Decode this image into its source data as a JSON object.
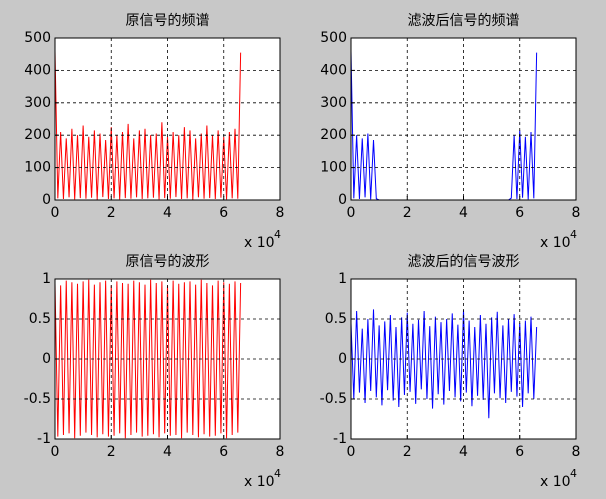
{
  "chart_data": [
    {
      "type": "line",
      "title": "原信号的频谱",
      "x_multiplier": "x 10",
      "x_exponent": "4",
      "x": [
        0,
        1000,
        2000,
        3000,
        4000,
        5000,
        6000,
        7000,
        8000,
        9000,
        10000,
        11000,
        12000,
        13000,
        14000,
        15000,
        16000,
        17000,
        18000,
        19000,
        20000,
        21000,
        22000,
        23000,
        24000,
        25000,
        26000,
        27000,
        28000,
        29000,
        30000,
        31000,
        32000,
        33000,
        34000,
        35000,
        36000,
        37000,
        38000,
        39000,
        40000,
        41000,
        42000,
        43000,
        44000,
        45000,
        46000,
        47000,
        48000,
        49000,
        50000,
        51000,
        52000,
        53000,
        54000,
        55000,
        56000,
        57000,
        58000,
        59000,
        60000,
        61000,
        62000,
        63000,
        64000,
        65000,
        66000
      ],
      "series": [
        {
          "color": "#ff0000",
          "values": [
            460,
            5,
            210,
            3,
            190,
            8,
            220,
            2,
            200,
            6,
            230,
            4,
            195,
            7,
            215,
            1,
            205,
            9,
            185,
            3,
            225,
            5,
            200,
            2,
            210,
            6,
            235,
            4,
            190,
            8,
            215,
            3,
            220,
            5,
            200,
            7,
            205,
            2,
            240,
            6,
            195,
            4,
            210,
            9,
            200,
            3,
            225,
            5,
            215,
            1,
            190,
            8,
            205,
            4,
            230,
            6,
            200,
            3,
            215,
            7,
            195,
            2,
            210,
            5,
            220,
            4,
            455
          ]
        }
      ],
      "xlim": [
        0,
        80000
      ],
      "xticks": [
        0,
        {
          "value": 20000,
          "label": "2"
        },
        {
          "value": 40000,
          "label": "4"
        },
        {
          "value": 60000,
          "label": "6"
        },
        {
          "value": 80000,
          "label": "8"
        }
      ],
      "ylim": [
        0,
        500
      ],
      "yticks": [
        0,
        100,
        200,
        300,
        400,
        500
      ],
      "grid": true
    },
    {
      "type": "line",
      "title": "滤波后信号的频谱",
      "x_multiplier": "x 10",
      "x_exponent": "4",
      "x": [
        0,
        1000,
        2000,
        3000,
        4000,
        5000,
        6000,
        7000,
        8000,
        9000,
        10000,
        11000,
        12000,
        13000,
        14000,
        15000,
        16000,
        17000,
        18000,
        19000,
        20000,
        21000,
        22000,
        23000,
        24000,
        25000,
        26000,
        27000,
        28000,
        29000,
        30000,
        31000,
        32000,
        33000,
        34000,
        35000,
        36000,
        37000,
        38000,
        39000,
        40000,
        41000,
        42000,
        43000,
        44000,
        45000,
        46000,
        47000,
        48000,
        49000,
        50000,
        51000,
        52000,
        53000,
        54000,
        55000,
        56000,
        57000,
        58000,
        59000,
        60000,
        61000,
        62000,
        63000,
        64000,
        65000,
        66000
      ],
      "series": [
        {
          "color": "#0000ff",
          "values": [
            460,
            5,
            200,
            3,
            190,
            8,
            205,
            2,
            185,
            4,
            0,
            0,
            0,
            0,
            0,
            0,
            0,
            0,
            0,
            0,
            0,
            0,
            0,
            0,
            0,
            0,
            0,
            0,
            0,
            0,
            0,
            0,
            0,
            0,
            0,
            0,
            0,
            0,
            0,
            0,
            0,
            0,
            0,
            0,
            0,
            0,
            0,
            0,
            0,
            0,
            0,
            0,
            0,
            0,
            0,
            0,
            0,
            6,
            200,
            3,
            215,
            7,
            195,
            2,
            210,
            5,
            455
          ]
        }
      ],
      "xlim": [
        0,
        80000
      ],
      "xticks": [
        0,
        {
          "value": 20000,
          "label": "2"
        },
        {
          "value": 40000,
          "label": "4"
        },
        {
          "value": 60000,
          "label": "6"
        },
        {
          "value": 80000,
          "label": "8"
        }
      ],
      "ylim": [
        0,
        500
      ],
      "yticks": [
        0,
        100,
        200,
        300,
        400,
        500
      ],
      "grid": true
    },
    {
      "type": "line",
      "title": "原信号的波形",
      "x_multiplier": "x 10",
      "x_exponent": "4",
      "x": [
        0,
        1000,
        2000,
        3000,
        4000,
        5000,
        6000,
        7000,
        8000,
        9000,
        10000,
        11000,
        12000,
        13000,
        14000,
        15000,
        16000,
        17000,
        18000,
        19000,
        20000,
        21000,
        22000,
        23000,
        24000,
        25000,
        26000,
        27000,
        28000,
        29000,
        30000,
        31000,
        32000,
        33000,
        34000,
        35000,
        36000,
        37000,
        38000,
        39000,
        40000,
        41000,
        42000,
        43000,
        44000,
        45000,
        46000,
        47000,
        48000,
        49000,
        50000,
        51000,
        52000,
        53000,
        54000,
        55000,
        56000,
        57000,
        58000,
        59000,
        60000,
        61000,
        62000,
        63000,
        64000,
        65000,
        66000
      ],
      "series": [
        {
          "color": "#ff0000",
          "values": [
            0.95,
            -0.97,
            0.92,
            -0.95,
            0.98,
            -0.93,
            0.96,
            -0.99,
            0.94,
            -0.96,
            0.97,
            -0.92,
            0.99,
            -0.95,
            0.93,
            -0.98,
            0.96,
            -0.94,
            0.98,
            -0.97,
            0.92,
            -0.96,
            0.97,
            -0.93,
            0.95,
            -0.99,
            0.94,
            -0.95,
            0.98,
            -0.92,
            0.96,
            -0.97,
            0.93,
            -0.96,
            0.99,
            -0.94,
            0.95,
            -0.98,
            0.97,
            -0.93,
            0.92,
            -0.96,
            0.98,
            -0.95,
            0.94,
            -0.99,
            0.96,
            -0.92,
            0.97,
            -0.95,
            0.93,
            -0.98,
            0.99,
            -0.94,
            0.95,
            -0.97,
            0.92,
            -0.96,
            0.98,
            -0.93,
            0.96,
            -0.99,
            0.94,
            -0.95,
            0.97,
            -0.92,
            0.95
          ]
        }
      ],
      "xlim": [
        0,
        80000
      ],
      "xticks": [
        0,
        {
          "value": 20000,
          "label": "2"
        },
        {
          "value": 40000,
          "label": "4"
        },
        {
          "value": 60000,
          "label": "6"
        },
        {
          "value": 80000,
          "label": "8"
        }
      ],
      "ylim": [
        -1,
        1
      ],
      "yticks": [
        -1,
        -0.5,
        0,
        0.5,
        1
      ],
      "grid": true
    },
    {
      "type": "line",
      "title": "滤波后的信号波形",
      "x_multiplier": "x 10",
      "x_exponent": "4",
      "x": [
        0,
        1000,
        2000,
        3000,
        4000,
        5000,
        6000,
        7000,
        8000,
        9000,
        10000,
        11000,
        12000,
        13000,
        14000,
        15000,
        16000,
        17000,
        18000,
        19000,
        20000,
        21000,
        22000,
        23000,
        24000,
        25000,
        26000,
        27000,
        28000,
        29000,
        30000,
        31000,
        32000,
        33000,
        34000,
        35000,
        36000,
        37000,
        38000,
        39000,
        40000,
        41000,
        42000,
        43000,
        44000,
        45000,
        46000,
        47000,
        48000,
        49000,
        50000,
        51000,
        52000,
        53000,
        54000,
        55000,
        56000,
        57000,
        58000,
        59000,
        60000,
        61000,
        62000,
        63000,
        64000,
        65000,
        66000
      ],
      "series": [
        {
          "color": "#0000ff",
          "values": [
            0.45,
            -0.5,
            0.6,
            -0.42,
            0.38,
            -0.55,
            0.5,
            -0.4,
            0.62,
            -0.48,
            0.42,
            -0.58,
            0.47,
            -0.39,
            0.55,
            -0.52,
            0.4,
            -0.6,
            0.52,
            -0.45,
            0.58,
            -0.41,
            0.44,
            -0.56,
            0.49,
            -0.38,
            0.6,
            -0.5,
            0.41,
            -0.62,
            0.53,
            -0.44,
            0.46,
            -0.57,
            0.5,
            -0.4,
            0.57,
            -0.48,
            0.43,
            -0.53,
            0.61,
            -0.42,
            0.48,
            -0.59,
            0.4,
            -0.46,
            0.55,
            -0.51,
            0.44,
            -0.74,
            0.52,
            -0.43,
            0.59,
            -0.49,
            0.42,
            -0.55,
            0.5,
            -0.41,
            0.56,
            -0.47,
            0.45,
            -0.6,
            0.48,
            -0.43,
            0.53,
            -0.5,
            0.4
          ]
        }
      ],
      "xlim": [
        0,
        80000
      ],
      "xticks": [
        0,
        {
          "value": 20000,
          "label": "2"
        },
        {
          "value": 40000,
          "label": "4"
        },
        {
          "value": 60000,
          "label": "6"
        },
        {
          "value": 80000,
          "label": "8"
        }
      ],
      "ylim": [
        -1,
        1
      ],
      "yticks": [
        -1,
        -0.5,
        0,
        0.5,
        1
      ],
      "grid": true
    }
  ]
}
